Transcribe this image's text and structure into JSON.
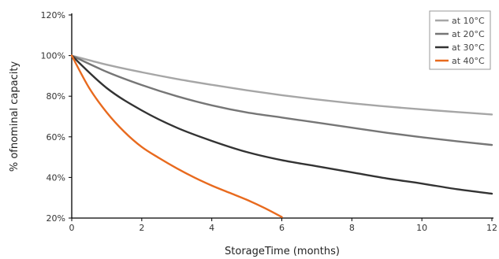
{
  "chart_data": {
    "type": "line",
    "title": "",
    "xlabel": "StorageTime (months)",
    "ylabel": "% ofnominal capacity",
    "xlim": [
      0,
      12
    ],
    "ylim": [
      20,
      120
    ],
    "x_ticks": [
      0,
      2,
      4,
      6,
      8,
      10,
      12
    ],
    "y_ticks": [
      20,
      40,
      60,
      80,
      100,
      120
    ],
    "y_tick_labels": [
      "20%",
      "40%",
      "60%",
      "80%",
      "100%",
      "120%"
    ],
    "grid": false,
    "legend_position": "top-right",
    "series": [
      {
        "name": "at 10°C",
        "color": "#a6a6a6",
        "x": [
          0,
          1,
          2,
          3,
          4,
          5,
          6,
          7,
          8,
          9,
          10,
          11,
          12
        ],
        "y": [
          100,
          95.5,
          91.8,
          88.5,
          85.6,
          82.9,
          80.5,
          78.4,
          76.5,
          74.9,
          73.5,
          72.2,
          71
        ]
      },
      {
        "name": "at 20°C",
        "color": "#767676",
        "x": [
          0,
          1,
          2,
          3,
          4,
          5,
          6,
          7,
          8,
          9,
          10,
          11,
          12
        ],
        "y": [
          100,
          92,
          85.5,
          80,
          75.5,
          72,
          69.5,
          67,
          64.5,
          62,
          59.8,
          57.8,
          56
        ]
      },
      {
        "name": "at 30°C",
        "color": "#333333",
        "x": [
          0,
          1,
          2,
          3,
          4,
          5,
          6,
          7,
          8,
          9,
          10,
          11,
          12
        ],
        "y": [
          100,
          84,
          73,
          64.5,
          58,
          52.5,
          48.5,
          45.5,
          42.5,
          39.5,
          37,
          34.2,
          32
        ]
      },
      {
        "name": "at 40°C",
        "color": "#e86a1e",
        "x": [
          0,
          0.5,
          1,
          1.5,
          2,
          2.5,
          3,
          3.5,
          4,
          4.5,
          5,
          5.5,
          6
        ],
        "y": [
          100,
          84,
          72,
          62.5,
          55,
          49.5,
          44.5,
          40,
          36,
          32.5,
          29,
          25,
          20.5
        ]
      }
    ]
  }
}
